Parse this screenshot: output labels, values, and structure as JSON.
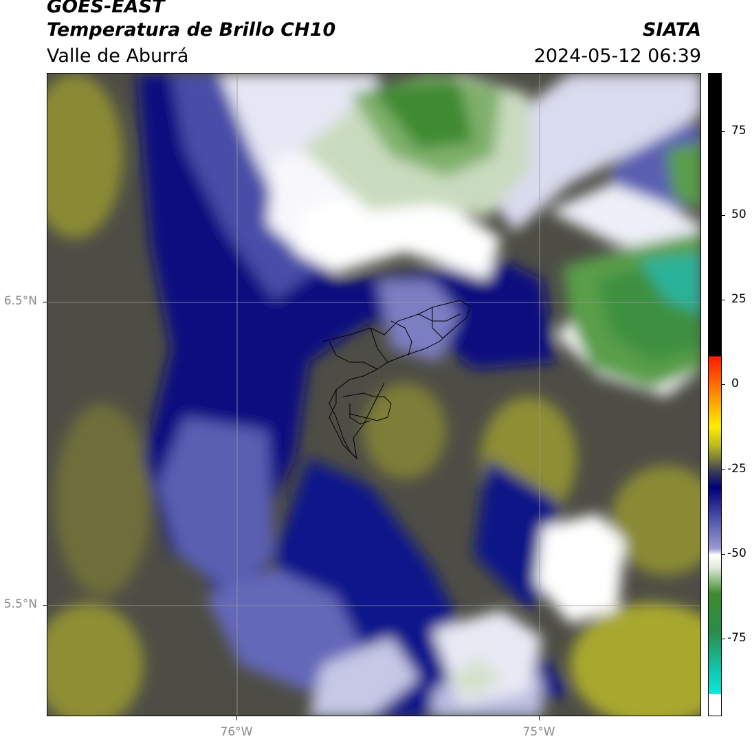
{
  "header": {
    "satellite": "GOES-EAST",
    "product": "Temperatura de Brillo CH10",
    "region": "Valle de Aburrá",
    "organization": "SIATA",
    "datetime": "2024-05-12 06:39"
  },
  "axes": {
    "lat_labels": [
      "6.5°N",
      "5.5°N"
    ],
    "lon_labels": [
      "76°W",
      "75°W"
    ]
  },
  "colorbar": {
    "tick_labels": [
      "75",
      "50",
      "25",
      "0",
      "-25",
      "-50",
      "-75"
    ],
    "colors": [
      "#000000",
      "#ff1a00",
      "#ff8c00",
      "#ffee00",
      "#b8b820",
      "#3a3a5a",
      "#00007a",
      "#9a9ad0",
      "#ffffff",
      "#3c8c2c",
      "#10e0d0"
    ]
  },
  "palette": {
    "yellow": "#a5a52c",
    "dark_olive": "#5a5a3a",
    "navy": "#070a7c",
    "blue": "#3b3f9e",
    "lavender": "#a9acd4",
    "white": "#ffffff",
    "light_green": "#c8dcbc",
    "green": "#4a8f3a",
    "teal": "#2ab39a"
  }
}
